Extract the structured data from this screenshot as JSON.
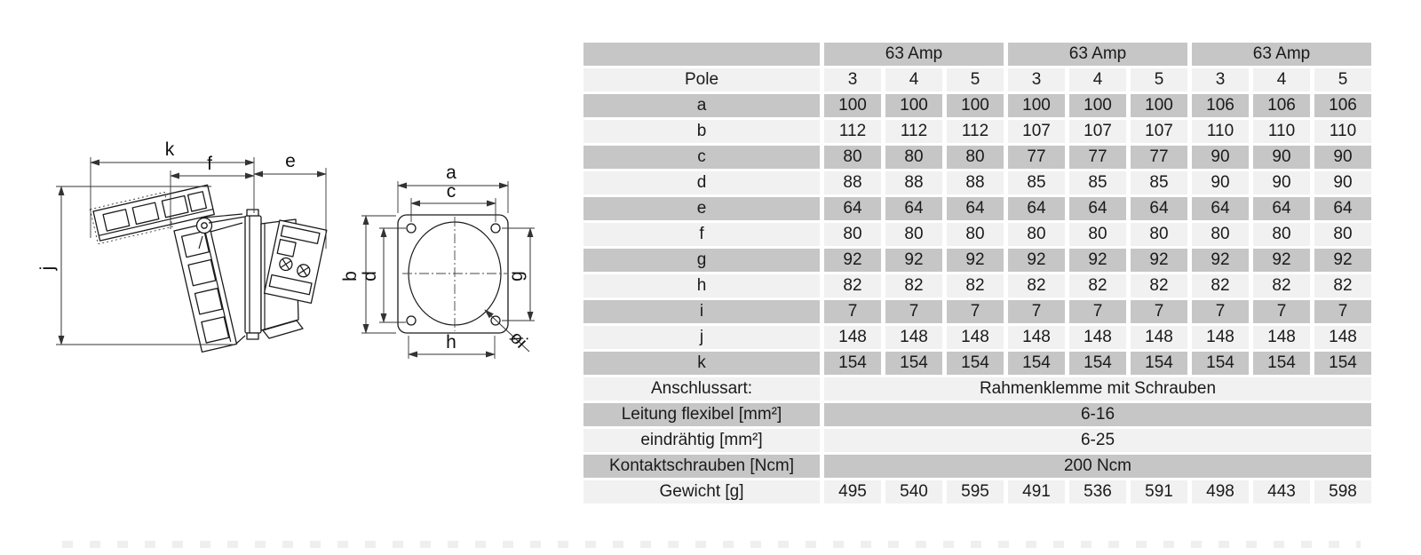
{
  "drawing": {
    "side_labels": {
      "k": "k",
      "f": "f",
      "e": "e",
      "j": "j"
    },
    "front_labels": {
      "a": "a",
      "c": "c",
      "b": "b",
      "d": "d",
      "g": "g",
      "h": "h",
      "diameter_i": "øi"
    }
  },
  "table": {
    "amp_headers": [
      "63 Amp",
      "63 Amp",
      "63 Amp"
    ],
    "pole_row": {
      "label": "Pole",
      "values": [
        "3",
        "4",
        "5",
        "3",
        "4",
        "5",
        "3",
        "4",
        "5"
      ]
    },
    "dim_rows": [
      {
        "label": "a",
        "shaded": true,
        "values": [
          "100",
          "100",
          "100",
          "100",
          "100",
          "100",
          "106",
          "106",
          "106"
        ]
      },
      {
        "label": "b",
        "shaded": false,
        "values": [
          "112",
          "112",
          "112",
          "107",
          "107",
          "107",
          "110",
          "110",
          "110"
        ]
      },
      {
        "label": "c",
        "shaded": true,
        "values": [
          "80",
          "80",
          "80",
          "77",
          "77",
          "77",
          "90",
          "90",
          "90"
        ]
      },
      {
        "label": "d",
        "shaded": false,
        "values": [
          "88",
          "88",
          "88",
          "85",
          "85",
          "85",
          "90",
          "90",
          "90"
        ]
      },
      {
        "label": "e",
        "shaded": true,
        "values": [
          "64",
          "64",
          "64",
          "64",
          "64",
          "64",
          "64",
          "64",
          "64"
        ]
      },
      {
        "label": "f",
        "shaded": false,
        "values": [
          "80",
          "80",
          "80",
          "80",
          "80",
          "80",
          "80",
          "80",
          "80"
        ]
      },
      {
        "label": "g",
        "shaded": true,
        "values": [
          "92",
          "92",
          "92",
          "92",
          "92",
          "92",
          "92",
          "92",
          "92"
        ]
      },
      {
        "label": "h",
        "shaded": false,
        "values": [
          "82",
          "82",
          "82",
          "82",
          "82",
          "82",
          "82",
          "82",
          "82"
        ]
      },
      {
        "label": "i",
        "shaded": true,
        "values": [
          "7",
          "7",
          "7",
          "7",
          "7",
          "7",
          "7",
          "7",
          "7"
        ]
      },
      {
        "label": "j",
        "shaded": false,
        "values": [
          "148",
          "148",
          "148",
          "148",
          "148",
          "148",
          "148",
          "148",
          "148"
        ]
      },
      {
        "label": "k",
        "shaded": true,
        "values": [
          "154",
          "154",
          "154",
          "154",
          "154",
          "154",
          "154",
          "154",
          "154"
        ]
      }
    ],
    "info_rows": [
      {
        "label": "Anschlussart:",
        "value": "Rahmenklemme mit Schrauben",
        "shaded": false,
        "label_align": "left"
      },
      {
        "label": "Leitung flexibel [mm²]",
        "value": "6-16",
        "shaded": true,
        "label_align": "left"
      },
      {
        "label": "eindrähtig [mm²]",
        "value": "6-25",
        "shaded": false,
        "label_align": "right"
      },
      {
        "label": "Kontaktschrauben [Ncm]",
        "value": "200 Ncm",
        "shaded": true,
        "label_align": "left"
      }
    ],
    "weight_row": {
      "label": "Gewicht [g]",
      "shaded": false,
      "values": [
        "495",
        "540",
        "595",
        "491",
        "536",
        "591",
        "498",
        "443",
        "598"
      ]
    }
  },
  "colors": {
    "row_shaded": "#c6c6c6",
    "row_light": "#f1f1f1",
    "line": "#1a1a1a"
  }
}
